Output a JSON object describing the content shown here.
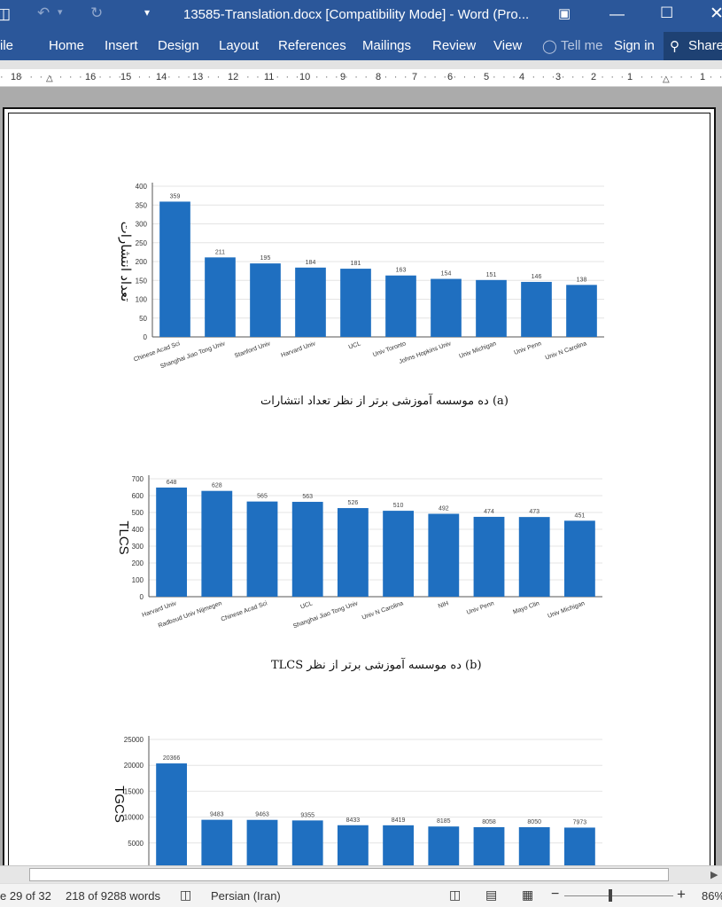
{
  "window": {
    "title": "13585-Translation.docx [Compatibility Mode] - Word (Pro...",
    "undo_icon": "undo-icon",
    "redo_icon": "redo-icon"
  },
  "ribbon": {
    "file_label": "ile",
    "tabs": [
      "Home",
      "Insert",
      "Design",
      "Layout",
      "References",
      "Mailings",
      "Review",
      "View"
    ],
    "tell_me": "Tell me",
    "sign_in": "Sign in",
    "share": "Share"
  },
  "ruler": {
    "numbers": [
      "18",
      "16",
      "15",
      "14",
      "13",
      "12",
      "11",
      "10",
      "9",
      "8",
      "7",
      "6",
      "5",
      "4",
      "3",
      "2",
      "1",
      "1"
    ]
  },
  "captions": {
    "a": "(a) ده موسسه آموزشی برتر از نظر تعداد انتشارات",
    "b": "(b) ده موسسه آموزشی برتر از نظر TLCS"
  },
  "chart_data": [
    {
      "type": "bar",
      "ylabel": "تعداد انتشارات",
      "ylim": [
        0,
        400
      ],
      "yticks": [
        0,
        50,
        100,
        150,
        200,
        250,
        300,
        350,
        400
      ],
      "categories": [
        "Chinese Acad Sci",
        "Shanghai Jiao Tong Univ",
        "Stanford Univ",
        "Harvard Univ",
        "UCL",
        "Univ Toronto",
        "Johns Hopkins Univ",
        "Univ Michigan",
        "Univ Penn",
        "Univ N Carolina"
      ],
      "values": [
        359,
        211,
        195,
        184,
        181,
        163,
        154,
        151,
        146,
        138
      ],
      "color": "#1f6fc0"
    },
    {
      "type": "bar",
      "ylabel": "TLCS",
      "ylim": [
        0,
        700
      ],
      "yticks": [
        0,
        100,
        200,
        300,
        400,
        500,
        600,
        700
      ],
      "categories": [
        "Harvard Univ",
        "Radboud Univ Nijmegen",
        "Chinese Acad Sci",
        "UCL",
        "Shanghai Jiao Tong Univ",
        "Univ N Carolina",
        "NIH",
        "Univ Penn",
        "Mayo Clin",
        "Univ Michigan"
      ],
      "values": [
        648,
        628,
        565,
        563,
        526,
        510,
        492,
        474,
        473,
        451
      ],
      "color": "#1f6fc0"
    },
    {
      "type": "bar",
      "ylabel": "TGCS",
      "ylim": [
        0,
        25000
      ],
      "yticks": [
        5000,
        10000,
        15000,
        20000,
        25000
      ],
      "categories": [
        "",
        "",
        "",
        "",
        "",
        "",
        "",
        "",
        "",
        ""
      ],
      "values": [
        20366,
        9483,
        9463,
        9355,
        8433,
        8419,
        8185,
        8058,
        8050,
        7973
      ],
      "color": "#1f6fc0"
    }
  ],
  "status": {
    "page": "e 29 of 32",
    "words": "218 of 9288 words",
    "language": "Persian (Iran)",
    "zoom": "86%"
  }
}
